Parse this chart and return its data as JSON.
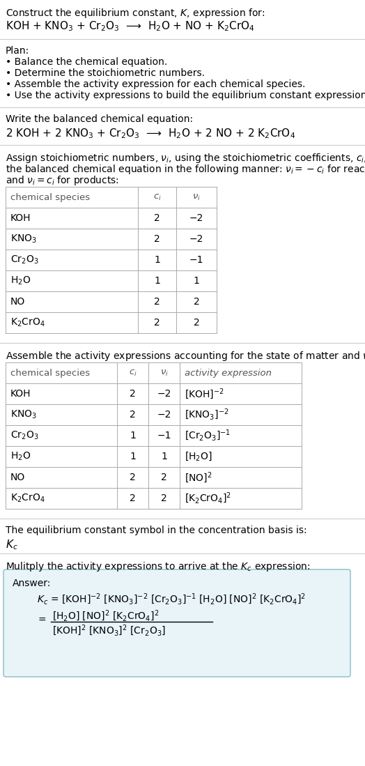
{
  "bg_color": "#ffffff",
  "text_color": "#000000",
  "border_color": "#cccccc",
  "table_border_color": "#aaaaaa",
  "answer_box_color": "#e8f4f8",
  "answer_box_border": "#88bbcc",
  "section1_title": "Construct the equilibrium constant, $K$, expression for:",
  "section1_reaction": "KOH + KNO$_3$ + Cr$_2$O$_3$  ⟶  H$_2$O + NO + K$_2$CrO$_4$",
  "section2_title": "Plan:",
  "section2_bullets": [
    "• Balance the chemical equation.",
    "• Determine the stoichiometric numbers.",
    "• Assemble the activity expression for each chemical species.",
    "• Use the activity expressions to build the equilibrium constant expression."
  ],
  "section3_title": "Write the balanced chemical equation:",
  "section3_equation": "2 KOH + 2 KNO$_3$ + Cr$_2$O$_3$  ⟶  H$_2$O + 2 NO + 2 K$_2$CrO$_4$",
  "section4_para": [
    "Assign stoichiometric numbers, $\\nu_i$, using the stoichiometric coefficients, $c_i$, from",
    "the balanced chemical equation in the following manner: $\\nu_i = -c_i$ for reactants",
    "and $\\nu_i = c_i$ for products:"
  ],
  "table1_headers": [
    "chemical species",
    "$c_i$",
    "$\\nu_i$"
  ],
  "table1_rows": [
    [
      "KOH",
      "2",
      "−2"
    ],
    [
      "KNO$_3$",
      "2",
      "−2"
    ],
    [
      "Cr$_2$O$_3$",
      "1",
      "−1"
    ],
    [
      "H$_2$O",
      "1",
      "1"
    ],
    [
      "NO",
      "2",
      "2"
    ],
    [
      "K$_2$CrO$_4$",
      "2",
      "2"
    ]
  ],
  "section5_title": "Assemble the activity expressions accounting for the state of matter and $\\nu_i$:",
  "table2_headers": [
    "chemical species",
    "$c_i$",
    "$\\nu_i$",
    "activity expression"
  ],
  "table2_rows": [
    [
      "KOH",
      "2",
      "−2",
      "[KOH]$^{-2}$"
    ],
    [
      "KNO$_3$",
      "2",
      "−2",
      "[KNO$_3$]$^{-2}$"
    ],
    [
      "Cr$_2$O$_3$",
      "1",
      "−1",
      "[Cr$_2$O$_3$]$^{-1}$"
    ],
    [
      "H$_2$O",
      "1",
      "1",
      "[H$_2$O]"
    ],
    [
      "NO",
      "2",
      "2",
      "[NO]$^2$"
    ],
    [
      "K$_2$CrO$_4$",
      "2",
      "2",
      "[K$_2$CrO$_4$]$^2$"
    ]
  ],
  "section6_title": "The equilibrium constant symbol in the concentration basis is:",
  "section6_symbol": "$K_c$",
  "section7_title": "Mulitply the activity expressions to arrive at the $K_c$ expression:",
  "answer_label": "Answer:",
  "answer_kc_line": "$K_c$ = [KOH]$^{-2}$ [KNO$_3$]$^{-2}$ [Cr$_2$O$_3$]$^{-1}$ [H$_2$O] [NO]$^2$ [K$_2$CrO$_4$]$^2$",
  "answer_numerator": "[H$_2$O] [NO]$^2$ [K$_2$CrO$_4$]$^2$",
  "answer_denominator": "[KOH]$^2$ [KNO$_3$]$^2$ [Cr$_2$O$_3$]"
}
